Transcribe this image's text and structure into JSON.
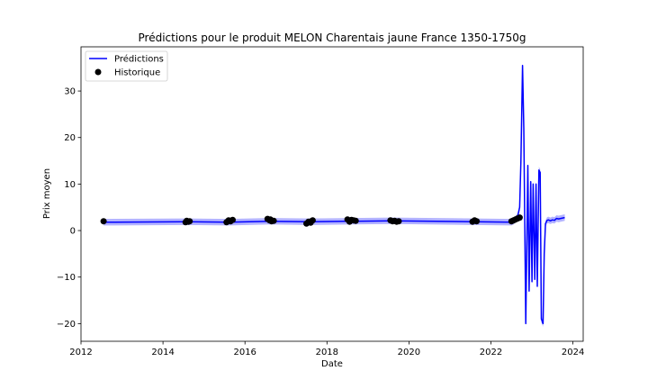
{
  "chart_data": {
    "type": "line",
    "title": "Prédictions pour le produit MELON Charentais jaune France 1350-1750g",
    "xlabel": "Date",
    "ylabel": "Prix moyen",
    "xlim": [
      2012.0,
      2024.25
    ],
    "ylim": [
      -23.8,
      39.5
    ],
    "x_ticks": [
      2012,
      2014,
      2016,
      2018,
      2020,
      2022,
      2024
    ],
    "x_tick_labels": [
      "2012",
      "2014",
      "2016",
      "2018",
      "2020",
      "2022",
      "2024"
    ],
    "y_ticks": [
      -20,
      -10,
      0,
      10,
      20,
      30
    ],
    "y_tick_labels": [
      "−20",
      "−10",
      "0",
      "10",
      "20",
      "30"
    ],
    "grid": false,
    "legend": {
      "position": "top-left",
      "entries": [
        "Prédictions",
        "Historique"
      ]
    },
    "colors": {
      "predictions": "#0000ff",
      "band": "#b3b3ff",
      "historique": "#000000"
    },
    "series": [
      {
        "name": "Prédictions",
        "kind": "line",
        "x": [
          2012.55,
          2014.6,
          2015.6,
          2016.6,
          2017.6,
          2018.6,
          2019.6,
          2021.6,
          2022.5,
          2022.55,
          2022.6,
          2022.65,
          2022.7,
          2022.73,
          2022.77,
          2022.8,
          2022.85,
          2022.9,
          2022.93,
          2022.97,
          2023.0,
          2023.03,
          2023.07,
          2023.1,
          2023.13,
          2023.17,
          2023.2,
          2023.23,
          2023.27,
          2023.3,
          2023.33,
          2023.37,
          2023.4,
          2023.45,
          2023.5,
          2023.55,
          2023.6,
          2023.65,
          2023.7,
          2023.75,
          2023.8
        ],
        "y": [
          1.8,
          1.9,
          1.8,
          2.0,
          1.9,
          2.0,
          2.1,
          1.9,
          1.8,
          2.0,
          2.4,
          3.0,
          5.0,
          15.0,
          35.5,
          22.0,
          -20.0,
          14.0,
          -13.0,
          10.5,
          -11.0,
          10.0,
          -10.5,
          10.0,
          -12.0,
          13.0,
          12.5,
          -19.0,
          -20.0,
          -5.0,
          1.5,
          2.2,
          2.3,
          2.1,
          2.3,
          2.2,
          2.6,
          2.5,
          2.6,
          2.7,
          2.8
        ]
      },
      {
        "name": "Historique",
        "kind": "scatter",
        "x": [
          2012.55,
          2014.55,
          2014.58,
          2014.62,
          2014.65,
          2015.55,
          2015.6,
          2015.65,
          2015.7,
          2016.55,
          2016.6,
          2016.62,
          2016.65,
          2016.7,
          2017.5,
          2017.55,
          2017.6,
          2017.62,
          2017.65,
          2018.5,
          2018.55,
          2018.6,
          2018.65,
          2018.7,
          2019.55,
          2019.6,
          2019.65,
          2019.7,
          2019.75,
          2021.55,
          2021.6,
          2021.65,
          2022.5,
          2022.55,
          2022.6,
          2022.65,
          2022.7
        ],
        "y": [
          2.0,
          1.8,
          2.1,
          1.9,
          2.0,
          1.8,
          2.2,
          2.0,
          2.3,
          2.5,
          2.2,
          2.4,
          2.0,
          2.1,
          1.5,
          1.9,
          1.7,
          2.0,
          2.2,
          2.4,
          1.9,
          2.3,
          2.2,
          2.1,
          2.2,
          2.0,
          2.1,
          1.9,
          2.0,
          1.9,
          2.2,
          2.0,
          2.0,
          2.2,
          2.4,
          2.6,
          2.8
        ]
      }
    ]
  }
}
